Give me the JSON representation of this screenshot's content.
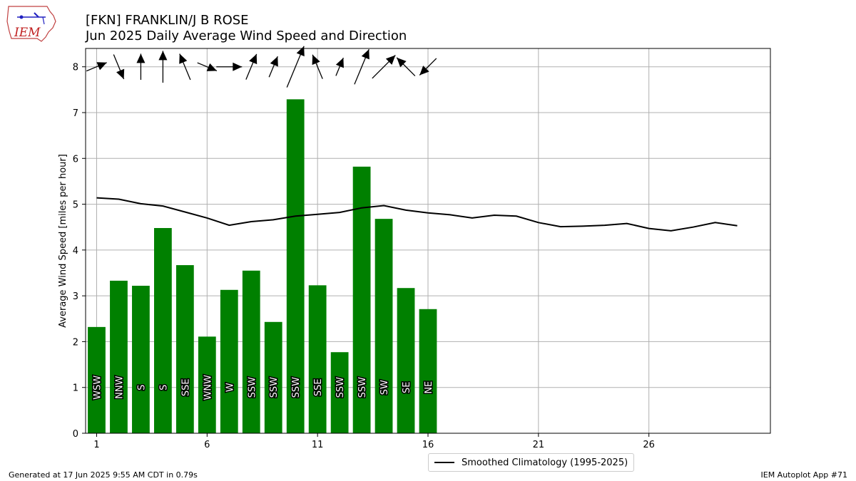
{
  "header": {
    "logo_text": "IEM",
    "title_line1": "[FKN] FRANKLIN/J B ROSE",
    "title_line2": "Jun 2025 Daily Average Wind Speed and Direction"
  },
  "footer": {
    "left": "Generated at 17 Jun 2025 9:55 AM CDT in 0.79s",
    "right": "IEM Autoplot App #71"
  },
  "legend": {
    "label": "Smoothed Climatology (1995-2025)"
  },
  "colors": {
    "bar": "#008000",
    "climatology": "#000000",
    "grid": "#b0b0b0"
  },
  "chart_data": {
    "type": "bar",
    "title": "[FKN] FRANKLIN/J B ROSE",
    "subtitle": "Jun 2025 Daily Average Wind Speed and Direction",
    "xlabel": "",
    "ylabel": "Average Wind Speed [miles per hour]",
    "xlim": [
      0.5,
      31.5
    ],
    "ylim": [
      0,
      8.4
    ],
    "xticks": [
      1,
      6,
      11,
      16,
      21,
      26
    ],
    "yticks": [
      0,
      1,
      2,
      3,
      4,
      5,
      6,
      7,
      8
    ],
    "grid": true,
    "legend_position": "bottom-center",
    "days": [
      1,
      2,
      3,
      4,
      5,
      6,
      7,
      8,
      9,
      10,
      11,
      12,
      13,
      14,
      15,
      16
    ],
    "speeds": [
      2.32,
      3.33,
      3.22,
      4.48,
      3.67,
      2.11,
      3.13,
      3.55,
      2.43,
      7.29,
      3.23,
      1.77,
      5.82,
      4.68,
      3.17,
      2.71
    ],
    "directions": [
      "WSW",
      "NNW",
      "S",
      "S",
      "SSE",
      "WNW",
      "W",
      "SSW",
      "SSW",
      "SSW",
      "SSE",
      "SSW",
      "SSW",
      "SW",
      "SE",
      "NE"
    ],
    "climatology": {
      "name": "Smoothed Climatology (1995-2025)",
      "x": [
        1,
        2,
        3,
        4,
        5,
        6,
        7,
        8,
        9,
        10,
        11,
        12,
        13,
        14,
        15,
        16,
        17,
        18,
        19,
        20,
        21,
        22,
        23,
        24,
        25,
        26,
        27,
        28,
        29,
        30
      ],
      "y": [
        5.14,
        5.11,
        5.01,
        4.96,
        4.83,
        4.7,
        4.54,
        4.62,
        4.66,
        4.74,
        4.78,
        4.82,
        4.92,
        4.97,
        4.87,
        4.81,
        4.77,
        4.7,
        4.76,
        4.74,
        4.6,
        4.51,
        4.52,
        4.54,
        4.58,
        4.47,
        4.42,
        4.5,
        4.6,
        4.53
      ]
    }
  }
}
